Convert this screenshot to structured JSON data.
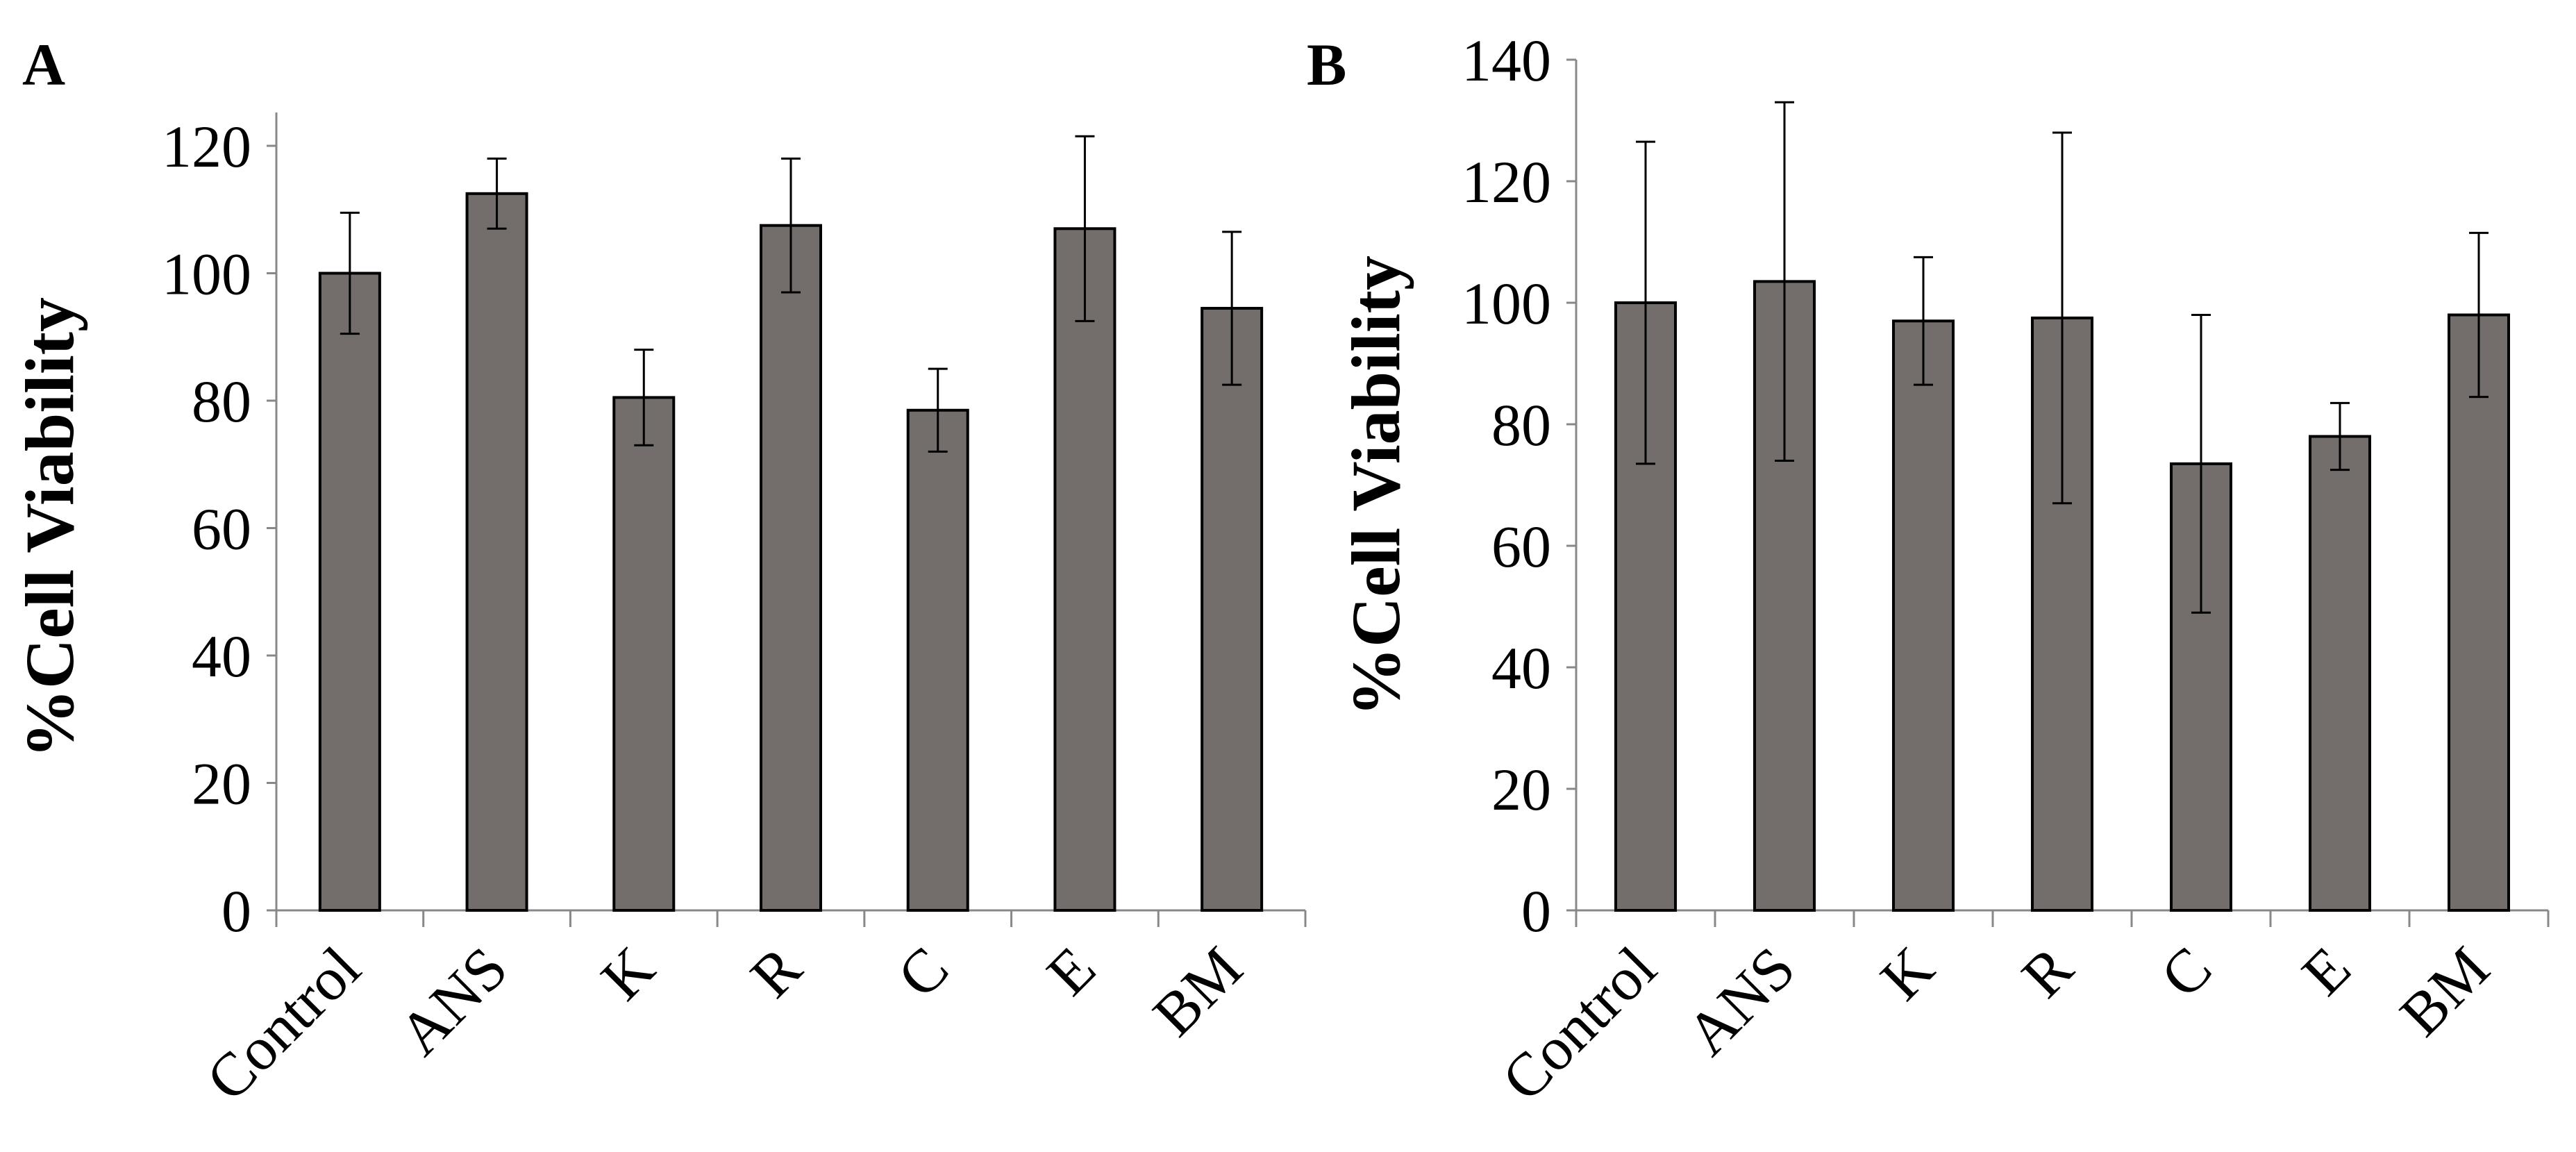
{
  "colors": {
    "bar_fill": "#736e6b",
    "bar_stroke": "#000000",
    "axis": "#888888",
    "error_bar": "#000000"
  },
  "chart_data": [
    {
      "panel": "A",
      "type": "bar",
      "ylabel": "%Cell Viability",
      "xlabel": "",
      "ylim": [
        0,
        120
      ],
      "yticks": [
        0,
        20,
        40,
        60,
        80,
        100,
        120
      ],
      "grid": false,
      "categories": [
        "Control",
        "ANS",
        "K",
        "R",
        "C",
        "E",
        "BM"
      ],
      "values": [
        100,
        112.5,
        80.5,
        107.5,
        78.5,
        107,
        94.5
      ],
      "error": [
        9.5,
        5.5,
        7.5,
        10.5,
        6.5,
        14.5,
        12
      ]
    },
    {
      "panel": "B",
      "type": "bar",
      "ylabel": "%Cell Viability",
      "xlabel": "",
      "ylim": [
        0,
        140
      ],
      "yticks": [
        0,
        20,
        40,
        60,
        80,
        100,
        120,
        140
      ],
      "grid": false,
      "categories": [
        "Control",
        "ANS",
        "K",
        "R",
        "C",
        "E",
        "BM"
      ],
      "values": [
        100,
        103.5,
        97,
        97.5,
        73.5,
        78,
        98
      ],
      "error": [
        26.5,
        29.5,
        10.5,
        30.5,
        24.5,
        5.5,
        13.5
      ]
    }
  ]
}
